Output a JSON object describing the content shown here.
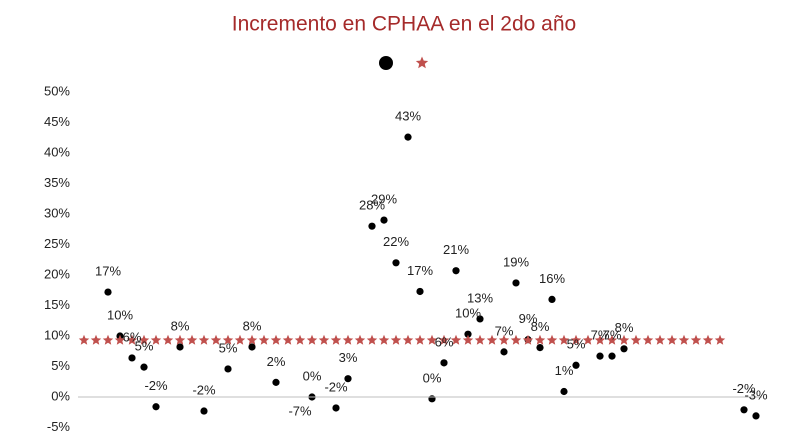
{
  "chart_data": {
    "type": "scatter",
    "title": "Incremento en CPHAA en el 2do año",
    "categories": [
      null,
      null,
      null,
      null,
      null,
      null,
      null,
      null,
      null,
      null,
      null,
      null,
      null,
      null,
      null,
      null,
      null,
      null,
      null,
      null,
      null,
      null,
      null,
      null,
      null,
      null,
      null,
      null,
      null,
      null,
      null,
      null,
      null,
      null,
      null,
      null,
      null,
      null,
      null,
      null,
      null,
      null,
      null,
      null,
      null,
      null,
      null,
      null,
      null,
      null,
      null,
      null,
      null,
      null,
      null,
      null,
      null
    ],
    "series": [
      {
        "color": "#000000",
        "marker": "circle",
        "values": [
          null,
          null,
          17.2,
          10,
          6.4,
          4.9,
          -1.6,
          null,
          8.2,
          null,
          -2.3,
          null,
          4.6,
          null,
          8.2,
          null,
          2.4,
          null,
          -7,
          0,
          null,
          -1.8,
          3,
          null,
          28,
          29,
          22,
          42.6,
          17.3,
          -0.3,
          5.6,
          20.7,
          10.3,
          12.8,
          null,
          7.4,
          18.7,
          9.4,
          8.1,
          16,
          0.9,
          5.2,
          null,
          6.7,
          6.7,
          7.9,
          null,
          null,
          null,
          null,
          null,
          null,
          null,
          null,
          null,
          -2.1,
          -3.1
        ],
        "value_labels": [
          null,
          null,
          "17%",
          "10%",
          "6%",
          "5%",
          "-2%",
          null,
          "8%",
          null,
          "-2%",
          null,
          "5%",
          null,
          "8%",
          null,
          "2%",
          null,
          "-7%",
          "0%",
          null,
          "-2%",
          "3%",
          null,
          "28%",
          "29%",
          "22%",
          "43%",
          "17%",
          "0%",
          "6%",
          "21%",
          "10%",
          "13%",
          null,
          "7%",
          "19%",
          "9%",
          "8%",
          "16%",
          "1%",
          "5%",
          null,
          "7%",
          "7%",
          "8%",
          null,
          null,
          null,
          null,
          null,
          null,
          null,
          null,
          null,
          "-2%",
          "-3%"
        ]
      },
      {
        "color": "#c0504d",
        "marker": "star",
        "values": [
          9.3,
          9.3,
          9.3,
          9.3,
          9.3,
          9.3,
          9.3,
          9.3,
          9.3,
          9.3,
          9.3,
          9.3,
          9.3,
          9.3,
          9.3,
          9.3,
          9.3,
          9.3,
          9.3,
          9.3,
          9.3,
          9.3,
          9.3,
          9.3,
          9.3,
          9.3,
          9.3,
          9.3,
          9.3,
          9.3,
          9.3,
          9.3,
          9.3,
          9.3,
          9.3,
          9.3,
          9.3,
          9.3,
          9.3,
          9.3,
          9.3,
          9.3,
          9.3,
          9.3,
          9.3,
          9.3,
          9.3,
          9.3,
          9.3,
          9.3,
          9.3,
          9.3,
          9.3,
          9.3,
          null,
          null,
          null
        ]
      }
    ],
    "ylim": [
      -5,
      50
    ],
    "yticks": [
      {
        "value": -5,
        "label": "-5%"
      },
      {
        "value": 0,
        "label": "0%"
      },
      {
        "value": 5,
        "label": "5%"
      },
      {
        "value": 10,
        "label": "10%"
      },
      {
        "value": 15,
        "label": "15%"
      },
      {
        "value": 20,
        "label": "20%"
      },
      {
        "value": 25,
        "label": "25%"
      },
      {
        "value": 30,
        "label": "30%"
      },
      {
        "value": 35,
        "label": "35%"
      },
      {
        "value": 40,
        "label": "40%"
      },
      {
        "value": 45,
        "label": "45%"
      },
      {
        "value": 50,
        "label": "50%"
      }
    ],
    "grid": false
  }
}
